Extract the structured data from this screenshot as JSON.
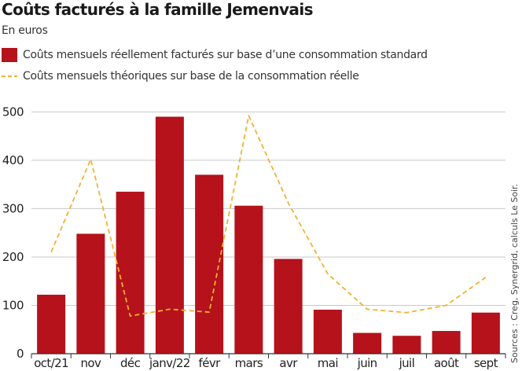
{
  "title": "Coûts facturés à la famille Jemenvais",
  "subtitle": "En euros",
  "legend": {
    "bars_label": "Coûts mensuels réellement facturés sur base d’une consommation standard",
    "line_label": "Coûts mensuels théoriques sur base de la consommation réelle"
  },
  "source": "Sources : Creg, Synergrid, calculs Le Soir.",
  "colors": {
    "bar": "#b5121b",
    "line": "#f2b134",
    "grid": "#c9c9c9",
    "axis": "#333333"
  },
  "chart_data": {
    "type": "bar",
    "categories": [
      "oct/21",
      "nov",
      "déc",
      "janv/22",
      "févr",
      "mars",
      "avr",
      "mai",
      "juin",
      "juil",
      "août",
      "sept"
    ],
    "series": [
      {
        "name": "Coûts mensuels réellement facturés sur base d’une consommation standard",
        "type": "bar",
        "values": [
          122,
          248,
          335,
          490,
          370,
          306,
          196,
          91,
          43,
          37,
          47,
          85
        ]
      },
      {
        "name": "Coûts mensuels théoriques sur base de la consommation réelle",
        "type": "line",
        "style": "dashed",
        "values": [
          210,
          402,
          78,
          92,
          86,
          492,
          312,
          165,
          92,
          85,
          100,
          158
        ]
      }
    ],
    "yticks": [
      0,
      100,
      200,
      300,
      400,
      500
    ],
    "ylim": [
      0,
      530
    ],
    "grid": true,
    "legend_position": "top-left"
  }
}
